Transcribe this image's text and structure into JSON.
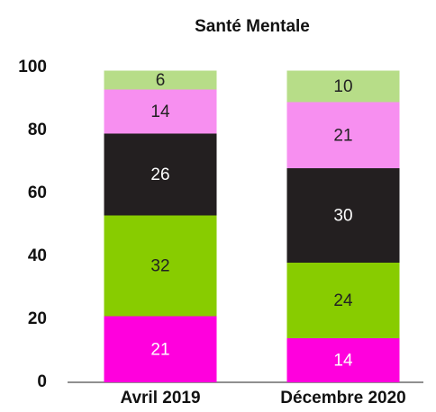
{
  "chart_data": {
    "type": "stacked_bar",
    "title": "Santé Mentale",
    "categories": [
      "Avril 2019",
      "Décembre 2020"
    ],
    "series": [
      {
        "color": "#ff00dd",
        "label_color": "#ffffff",
        "values": [
          21,
          14
        ]
      },
      {
        "color": "#88cc00",
        "label_color": "#222222",
        "values": [
          32,
          24
        ]
      },
      {
        "color": "#231f20",
        "label_color": "#ffffff",
        "values": [
          26,
          30
        ]
      },
      {
        "color": "#f78ff0",
        "label_color": "#222222",
        "values": [
          14,
          21
        ]
      },
      {
        "color": "#b7dd88",
        "label_color": "#222222",
        "values": [
          6,
          10
        ]
      }
    ],
    "ylim": [
      0,
      100
    ],
    "yticks": [
      0,
      20,
      40,
      60,
      80,
      100
    ],
    "grid": false
  }
}
